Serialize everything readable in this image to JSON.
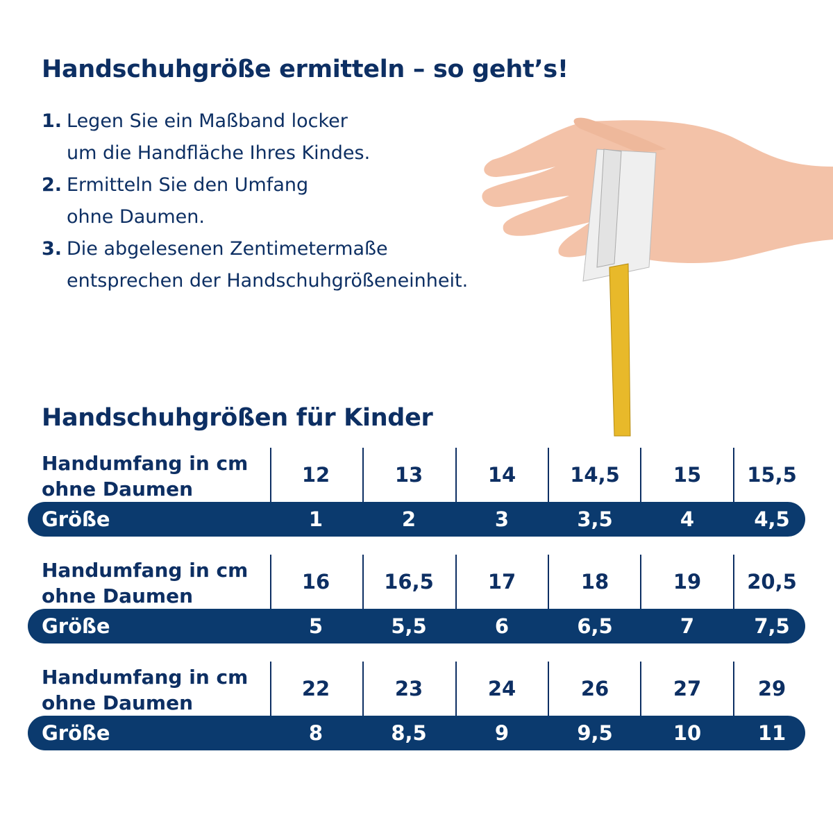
{
  "title": "Handschuhgröße ermitteln – so geht’s!",
  "steps": [
    {
      "number": "1.",
      "lines": [
        "Legen Sie ein Maßband locker",
        "um die Handfläche Ihres Kindes."
      ]
    },
    {
      "number": "2.",
      "lines": [
        "Ermitteln Sie den Umfang",
        "ohne Daumen."
      ]
    },
    {
      "number": "3.",
      "lines": [
        "Die abgelesenen Zentimetermaße",
        "entsprechen der Handschuhgrößeneinheit."
      ]
    }
  ],
  "table_title": "Handschuhgrößen für Kinder",
  "row_label_top": [
    "Handumfang in cm",
    "ohne Daumen"
  ],
  "row_label_size": "Größe",
  "groups": [
    {
      "circumference": [
        "12",
        "13",
        "14",
        "14,5",
        "15",
        "15,5"
      ],
      "size": [
        "1",
        "2",
        "3",
        "3,5",
        "4",
        "4,5"
      ]
    },
    {
      "circumference": [
        "16",
        "16,5",
        "17",
        "18",
        "19",
        "20,5"
      ],
      "size": [
        "5",
        "5,5",
        "6",
        "6,5",
        "7",
        "7,5"
      ]
    },
    {
      "circumference": [
        "22",
        "23",
        "24",
        "26",
        "27",
        "29"
      ],
      "size": [
        "8",
        "8,5",
        "9",
        "9,5",
        "10",
        "11"
      ]
    }
  ],
  "colors": {
    "text": "#0d2f63",
    "band": "#0b3a6e",
    "tape_white": "#efefef",
    "tape_yellow": "#e8b92a",
    "skin": "#f3c2a8"
  }
}
